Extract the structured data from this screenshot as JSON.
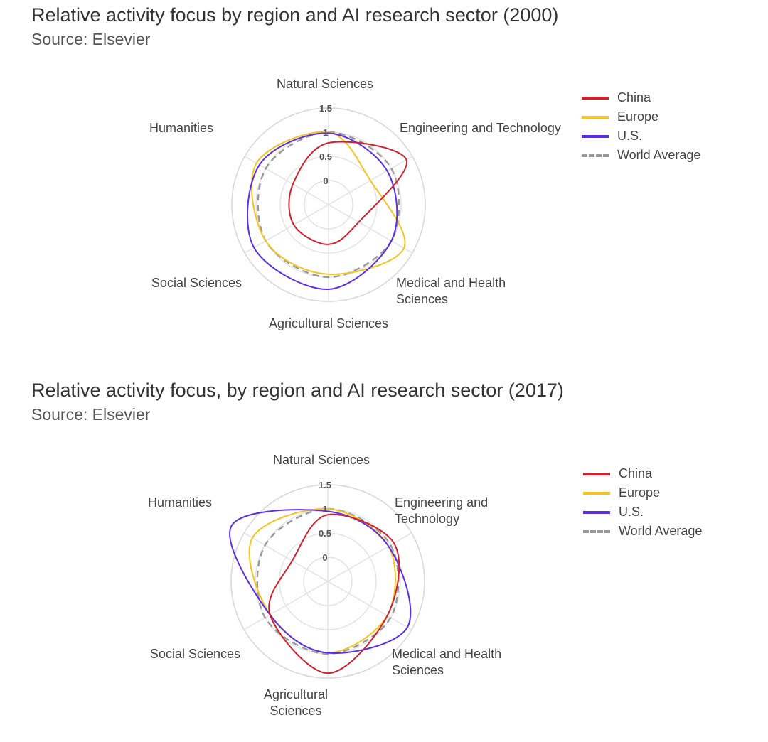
{
  "chart_data": [
    {
      "type": "radar",
      "title": "Relative activity focus by region and AI research sector (2000)",
      "subtitle": "Source: Elsevier",
      "axes": [
        "Natural Sciences",
        "Engineering and Technology",
        "Medical and Health Sciences",
        "Agricultural Sciences",
        "Social Sciences",
        "Humanities"
      ],
      "axis_label_lines": [
        [
          "Natural Sciences"
        ],
        [
          "Engineering and Technology"
        ],
        [
          "Medical and Health",
          "Sciences"
        ],
        [
          "Agricultural Sciences"
        ],
        [
          "Social Sciences"
        ],
        [
          "Humanities"
        ]
      ],
      "ticks": [
        "0",
        "0.5",
        "1",
        "1.5"
      ],
      "rlim": [
        -0.5,
        1.5
      ],
      "legend_position": "top-right",
      "series": [
        {
          "name": "China",
          "color": "#d0202e",
          "dashed": false,
          "values": [
            0.78,
            1.36,
            0.22,
            0.32,
            0.33,
            0.35
          ]
        },
        {
          "name": "Europe",
          "color": "#f5c422",
          "dashed": false,
          "values": [
            1.0,
            0.5,
            1.3,
            0.94,
            1.0,
            1.22
          ]
        },
        {
          "name": "U.S.",
          "color": "#5b2fe8",
          "dashed": false,
          "values": [
            0.98,
            0.9,
            1.0,
            1.25,
            1.28,
            1.15
          ]
        },
        {
          "name": "World Average",
          "color": "#999999",
          "dashed": true,
          "values": [
            1,
            1,
            1,
            1,
            1,
            1
          ]
        }
      ]
    },
    {
      "type": "radar",
      "title": "Relative activity focus, by region and AI research sector (2017)",
      "subtitle": "Source: Elsevier",
      "axes": [
        "Natural Sciences",
        "Engineering and Technology",
        "Medical and Health Sciences",
        "Agricultural Sciences",
        "Social Sciences",
        "Humanities"
      ],
      "axis_label_lines": [
        [
          "Natural Sciences"
        ],
        [
          "Engineering and",
          "Technology"
        ],
        [
          "Medical and Health",
          "Sciences"
        ],
        [
          "Agricultural",
          "Sciences"
        ],
        [
          "Social Sciences"
        ],
        [
          "Humanities"
        ]
      ],
      "ticks": [
        "0",
        "0.5",
        "1",
        "1.5"
      ],
      "rlim": [
        -0.5,
        1.5
      ],
      "legend_position": "top-right",
      "series": [
        {
          "name": "China",
          "color": "#d0202e",
          "dashed": false,
          "values": [
            0.88,
            1.08,
            0.92,
            1.4,
            0.88,
            0.35
          ]
        },
        {
          "name": "Europe",
          "color": "#f5c422",
          "dashed": false,
          "values": [
            1.0,
            0.95,
            0.92,
            0.98,
            0.88,
            1.3
          ]
        },
        {
          "name": "U.S.",
          "color": "#5b2fe8",
          "dashed": false,
          "values": [
            0.95,
            0.95,
            1.4,
            0.98,
            0.88,
            1.8
          ]
        },
        {
          "name": "World Average",
          "color": "#999999",
          "dashed": true,
          "values": [
            1,
            1,
            1,
            1,
            1,
            1
          ]
        }
      ]
    }
  ]
}
